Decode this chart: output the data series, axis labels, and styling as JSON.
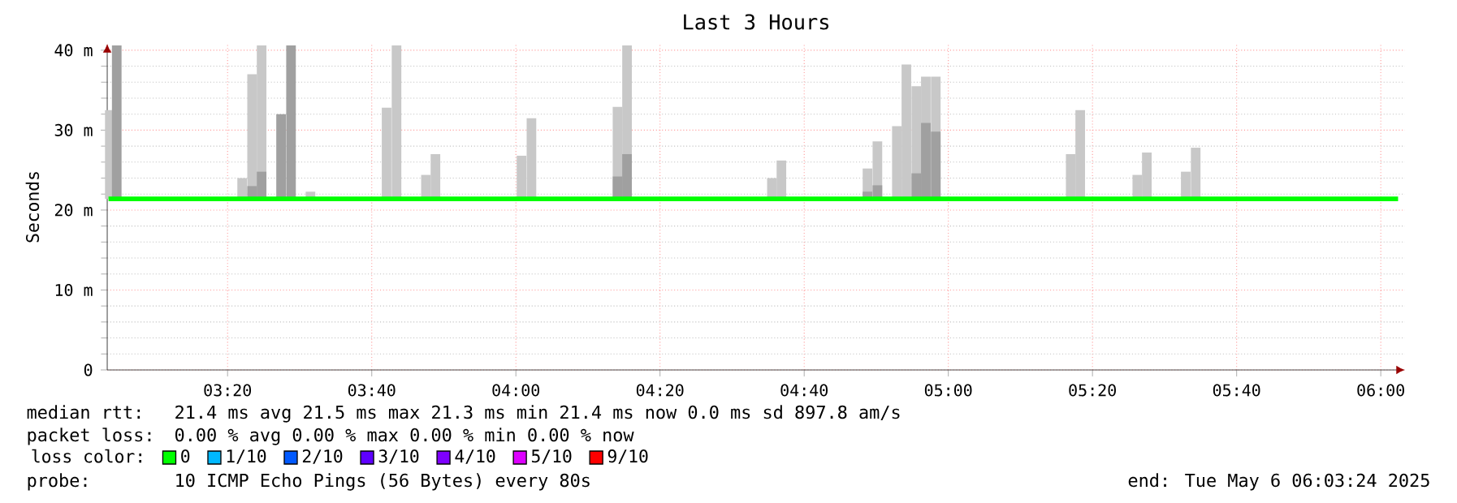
{
  "chart_data": {
    "type": "bar",
    "title": "Last 3 Hours",
    "ylabel": "Seconds",
    "legend_title": "loss color:",
    "legend": "bottom left",
    "grid": true,
    "xlim": [
      3.055,
      6.056
    ],
    "ylim": [
      0,
      40.8
    ],
    "xticks": [
      {
        "value": 3.3333,
        "label": "03:20"
      },
      {
        "value": 3.6667,
        "label": "03:40"
      },
      {
        "value": 4,
        "label": "04:00"
      },
      {
        "value": 4.3333,
        "label": "04:20"
      },
      {
        "value": 4.6667,
        "label": "04:40"
      },
      {
        "value": 5,
        "label": "05:00"
      },
      {
        "value": 5.3333,
        "label": "05:20"
      },
      {
        "value": 5.6667,
        "label": "05:40"
      },
      {
        "value": 6,
        "label": "06:00"
      }
    ],
    "yticks": [
      {
        "value": 0,
        "label": "0"
      },
      {
        "value": 10,
        "label": "10 m"
      },
      {
        "value": 20,
        "label": "20 m"
      },
      {
        "value": 30,
        "label": "30 m"
      },
      {
        "value": 40,
        "label": "40 m"
      }
    ],
    "series": [
      {
        "color": "#c8c8c8",
        "x": [
          3.061,
          3.367,
          3.39,
          3.412,
          3.525,
          3.701,
          3.724,
          3.792,
          3.814,
          4.013,
          4.036,
          4.235,
          4.257,
          4.592,
          4.614,
          4.813,
          4.836,
          4.881,
          4.903,
          4.926,
          4.948,
          4.971,
          5.283,
          5.305,
          5.437,
          5.459,
          5.549,
          5.572
        ],
        "base": [
          21.4,
          21.4,
          21.4,
          21.4,
          21.4,
          21.4,
          21.4,
          21.4,
          21.4,
          21.4,
          21.4,
          21.4,
          21.4,
          21.4,
          21.4,
          21.4,
          21.4,
          21.4,
          21.4,
          21.4,
          21.4,
          21.4,
          21.4,
          21.4,
          21.4,
          21.4,
          21.4,
          21.4
        ],
        "values": [
          11.1,
          2.6,
          15.6,
          19.2,
          0.9,
          11.4,
          19.2,
          3.0,
          5.6,
          5.4,
          10.1,
          11.5,
          19.2,
          2.6,
          4.8,
          3.8,
          7.2,
          9.1,
          16.8,
          14.1,
          15.3,
          15.3,
          5.6,
          11.1,
          3.0,
          5.8,
          3.4,
          6.4
        ]
      },
      {
        "color": "#a0a0a0",
        "x": [
          3.077,
          3.39,
          3.412,
          3.457,
          3.48,
          4.235,
          4.257,
          4.813,
          4.836,
          4.926,
          4.948,
          4.971
        ],
        "base": [
          21.4,
          21.4,
          21.4,
          21.4,
          21.4,
          21.4,
          21.4,
          21.4,
          21.4,
          21.4,
          21.4,
          21.4
        ],
        "values": [
          19.2,
          1.6,
          3.4,
          10.6,
          19.2,
          2.8,
          5.6,
          0.9,
          1.7,
          3.2,
          9.5,
          8.4
        ]
      },
      {
        "type": "line",
        "name": "0",
        "color": "#00ff00",
        "x": [
          3.058,
          6.04
        ],
        "values": [
          21.4,
          21.4
        ]
      },
      {
        "type": "line",
        "name": "1/10",
        "color": "#00b8ff"
      },
      {
        "type": "line",
        "name": "2/10",
        "color": "#0059ff"
      },
      {
        "type": "line",
        "name": "3/10",
        "color": "#5e00ff"
      },
      {
        "type": "line",
        "name": "4/10",
        "color": "#7e00ff"
      },
      {
        "type": "line",
        "name": "5/10",
        "color": "#dd00ff"
      },
      {
        "type": "line",
        "name": "9/10",
        "color": "#ff0000"
      }
    ],
    "annotations": [
      "median rtt:",
      "21.4 ms avg  21.5 ms max  21.3 ms min  21.4 ms now  0.0 ms sd  897.8   am/s",
      "packet loss:",
      "0.00 % avg  0.00 % max  0.00 % min  0.00 % now",
      "probe:",
      "10 ICMP Echo Pings (56 Bytes) every 80s",
      "end: Tue May  6 06:03:24 2025"
    ]
  }
}
